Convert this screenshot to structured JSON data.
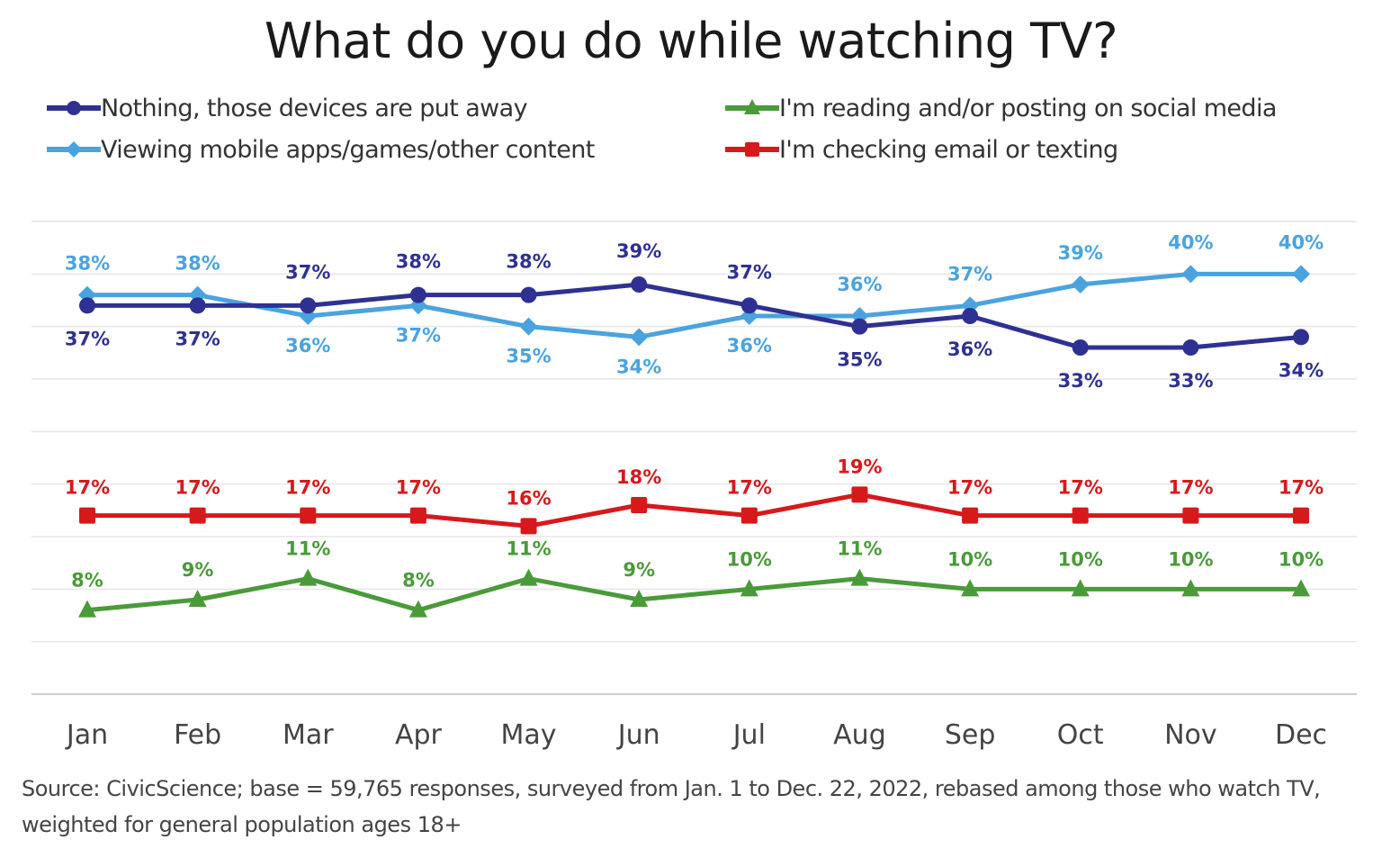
{
  "chart_data": {
    "type": "line",
    "title": "What do you do while watching TV?",
    "categories": [
      "Jan",
      "Feb",
      "Mar",
      "Apr",
      "May",
      "Jun",
      "Jul",
      "Aug",
      "Sep",
      "Oct",
      "Nov",
      "Dec"
    ],
    "ylim": [
      0,
      45
    ],
    "grid": true,
    "legend_position": "top",
    "series": [
      {
        "name": "Nothing, those devices are put away",
        "values": [
          37,
          37,
          37,
          38,
          38,
          39,
          37,
          35,
          36,
          33,
          33,
          34
        ],
        "labels": [
          "37%",
          "37%",
          "37%",
          "38%",
          "38%",
          "39%",
          "37%",
          "35%",
          "36%",
          "33%",
          "33%",
          "34%"
        ],
        "label_side": [
          "below",
          "below",
          "above",
          "above",
          "above",
          "above",
          "above",
          "below",
          "below",
          "below",
          "below",
          "below"
        ],
        "color": "#2e3192",
        "marker": "circle"
      },
      {
        "name": "Viewing mobile apps/games/other content",
        "values": [
          38,
          38,
          36,
          37,
          35,
          34,
          36,
          36,
          37,
          39,
          40,
          40
        ],
        "labels": [
          "38%",
          "38%",
          "36%",
          "37%",
          "35%",
          "34%",
          "36%",
          "36%",
          "37%",
          "39%",
          "40%",
          "40%"
        ],
        "label_side": [
          "above",
          "above",
          "below",
          "below",
          "below",
          "below",
          "below",
          "above",
          "above",
          "above",
          "above",
          "above"
        ],
        "color": "#4aa3df",
        "marker": "diamond"
      },
      {
        "name": "I'm reading and/or posting on social media",
        "values": [
          8,
          9,
          11,
          8,
          11,
          9,
          10,
          11,
          10,
          10,
          10,
          10
        ],
        "labels": [
          "8%",
          "9%",
          "11%",
          "8%",
          "11%",
          "9%",
          "10%",
          "11%",
          "10%",
          "10%",
          "10%",
          "10%"
        ],
        "label_side": [
          "above",
          "above",
          "above",
          "above",
          "above",
          "above",
          "above",
          "above",
          "above",
          "above",
          "above",
          "above"
        ],
        "color": "#4a9a3a",
        "marker": "triangle"
      },
      {
        "name": "I'm checking email or texting",
        "values": [
          17,
          17,
          17,
          17,
          16,
          18,
          17,
          19,
          17,
          17,
          17,
          17
        ],
        "labels": [
          "17%",
          "17%",
          "17%",
          "17%",
          "16%",
          "18%",
          "17%",
          "19%",
          "17%",
          "17%",
          "17%",
          "17%"
        ],
        "label_side": [
          "above",
          "above",
          "above",
          "above",
          "above",
          "above",
          "above",
          "above",
          "above",
          "above",
          "above",
          "above"
        ],
        "color": "#d7191c",
        "marker": "square"
      }
    ]
  },
  "legend": {
    "items": [
      {
        "label": "Nothing, those devices are put away",
        "color": "#2e3192",
        "marker": "circle"
      },
      {
        "label": "I'm reading and/or posting on social media",
        "color": "#4a9a3a",
        "marker": "triangle"
      },
      {
        "label": "Viewing mobile apps/games/other content",
        "color": "#4aa3df",
        "marker": "diamond"
      },
      {
        "label": "I'm checking email or texting",
        "color": "#d7191c",
        "marker": "square"
      }
    ]
  },
  "source_note": "Source: CivicScience; base = 59,765 responses, surveyed from Jan. 1 to Dec. 22, 2022, rebased among those who watch TV, weighted for general population ages 18+"
}
